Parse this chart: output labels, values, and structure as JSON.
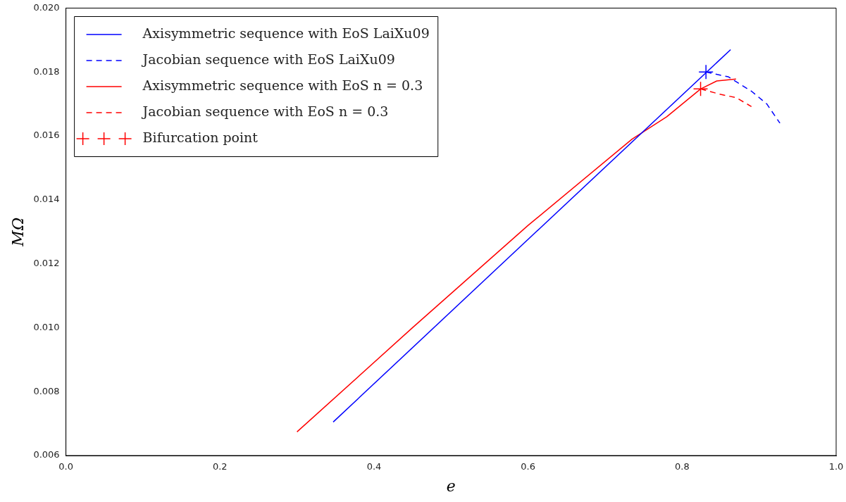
{
  "chart_data": {
    "type": "line",
    "xlabel": "e",
    "ylabel": "MΩ",
    "xlim": [
      0,
      1
    ],
    "ylim": [
      0.006,
      0.02
    ],
    "xticks": [
      {
        "value": 0,
        "label": "0.0"
      },
      0.2,
      0.4,
      0.6,
      0.8,
      {
        "value": 1,
        "label": "1.0"
      }
    ],
    "yticks": [
      {
        "value": 0.006,
        "label": "0.006"
      },
      {
        "value": 0.008,
        "label": "0.008"
      },
      {
        "value": 0.01,
        "label": "0.010"
      },
      {
        "value": 0.012,
        "label": "0.012"
      },
      {
        "value": 0.014,
        "label": "0.014"
      },
      {
        "value": 0.016,
        "label": "0.016"
      },
      {
        "value": 0.018,
        "label": "0.018"
      },
      {
        "value": 0.02,
        "label": "0.020"
      }
    ],
    "grid": false,
    "legend": "top left",
    "marker": "none",
    "series": [
      {
        "name": "Axisymmetric sequence with EoS LaiXu09",
        "color": "#0000ff",
        "line_style": "solid",
        "x": [
          0.347,
          0.863
        ],
        "values": [
          0.00705,
          0.0187
        ]
      },
      {
        "name": "Jacobian sequence with EoS LaiXu09",
        "color": "#0000ff",
        "line_style": "dashed",
        "x": [
          0.831,
          0.86,
          0.89,
          0.91,
          0.927
        ],
        "values": [
          0.018,
          0.01785,
          0.0174,
          0.017,
          0.0164
        ]
      },
      {
        "name": "Axisymmetric sequence with EoS n = 0.3",
        "color": "#ff0000",
        "line_style": "solid",
        "x": [
          0.3,
          0.45,
          0.6,
          0.735,
          0.78,
          0.824,
          0.845,
          0.87
        ],
        "values": [
          0.00674,
          0.01,
          0.0132,
          0.0159,
          0.0166,
          0.01747,
          0.01772,
          0.01778
        ]
      },
      {
        "name": "Jacobian sequence with EoS n = 0.3",
        "color": "#ff0000",
        "line_style": "dashed",
        "x": [
          0.824,
          0.85,
          0.87,
          0.89
        ],
        "values": [
          0.01747,
          0.0173,
          0.0172,
          0.01692
        ]
      },
      {
        "name": "Bifurcation point",
        "type": "scatter",
        "marker": "cross",
        "color": "#ff0000",
        "colors": [
          "#0000ff",
          "#ff0000"
        ],
        "x": [
          0.831,
          0.824
        ],
        "values": [
          0.018,
          0.01747
        ]
      }
    ]
  }
}
